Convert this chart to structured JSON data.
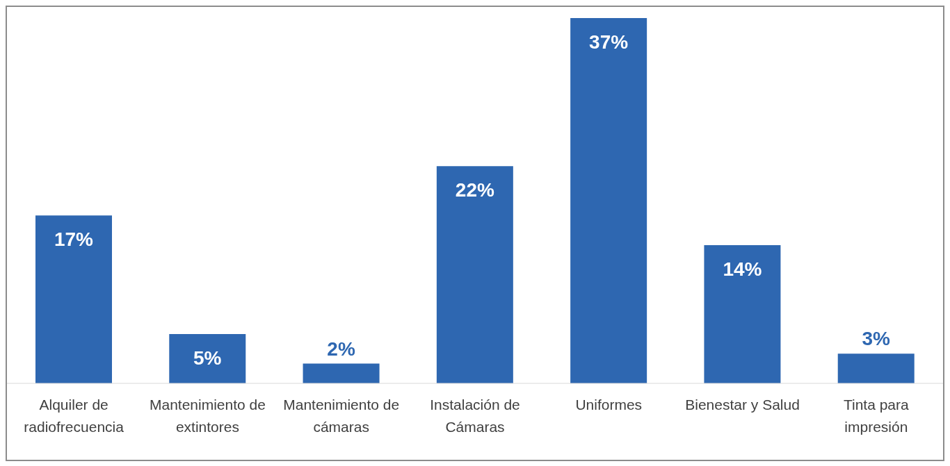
{
  "chart_data": {
    "type": "bar",
    "categories": [
      "Alquiler de radiofrecuencia",
      "Mantenimiento de extintores",
      "Mantenimiento de cámaras",
      "Instalación de Cámaras",
      "Uniformes",
      "Bienestar y Salud",
      "Tinta para impresión"
    ],
    "values": [
      17,
      5,
      2,
      22,
      37,
      14,
      3
    ],
    "value_labels": [
      "17%",
      "5%",
      "2%",
      "22%",
      "37%",
      "14%",
      "3%"
    ],
    "color": "#2e67b1",
    "grid": false,
    "legend": false
  }
}
